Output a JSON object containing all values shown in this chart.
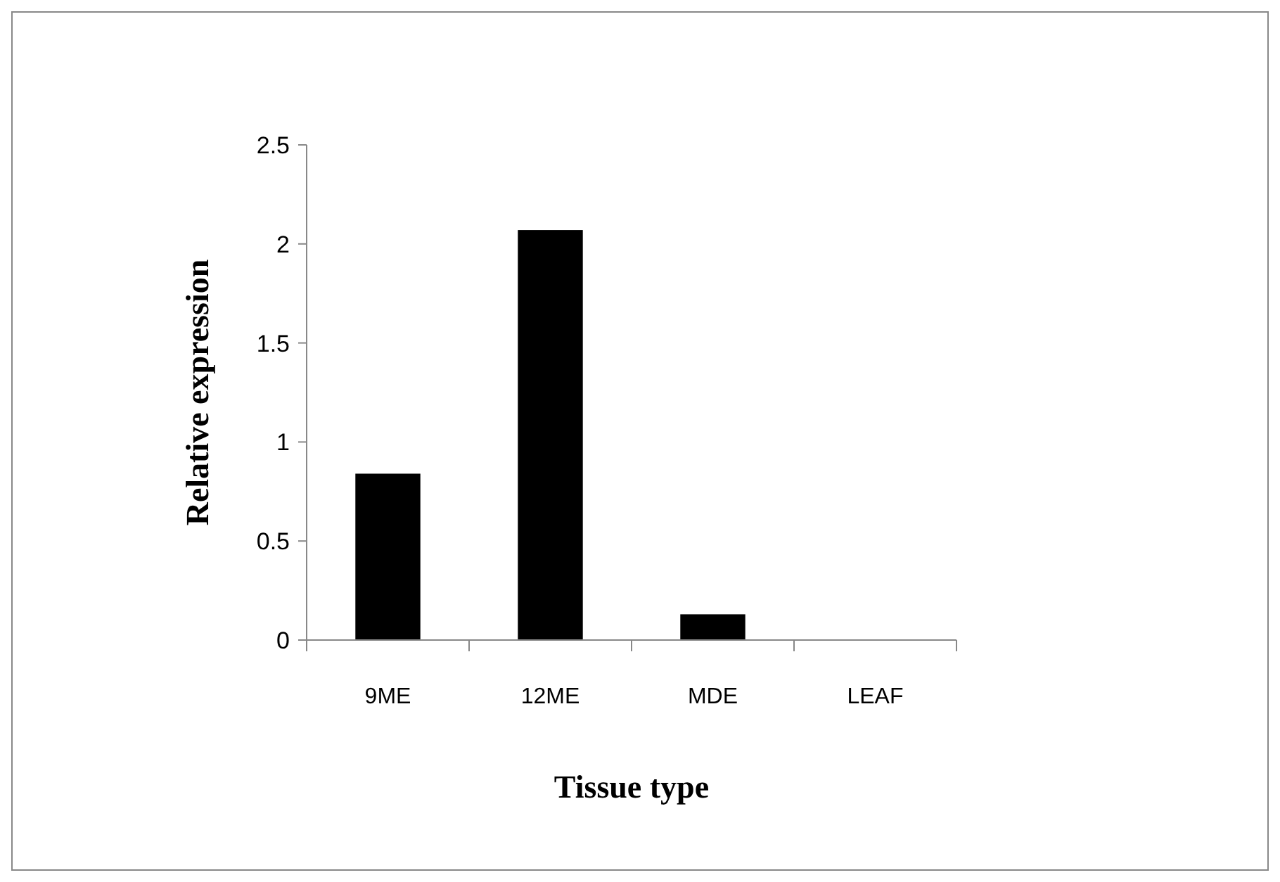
{
  "chart_data": {
    "type": "bar",
    "xlabel": "Tissue type",
    "ylabel": "Relative expression",
    "categories": [
      "9ME",
      "12ME",
      "MDE",
      "LEAF"
    ],
    "values": [
      0.84,
      2.07,
      0.13,
      0
    ],
    "color": "#000000",
    "ylim": [
      0,
      2.5
    ],
    "yticks": [
      0,
      0.5,
      1,
      1.5,
      2,
      2.5
    ],
    "grid": false
  }
}
